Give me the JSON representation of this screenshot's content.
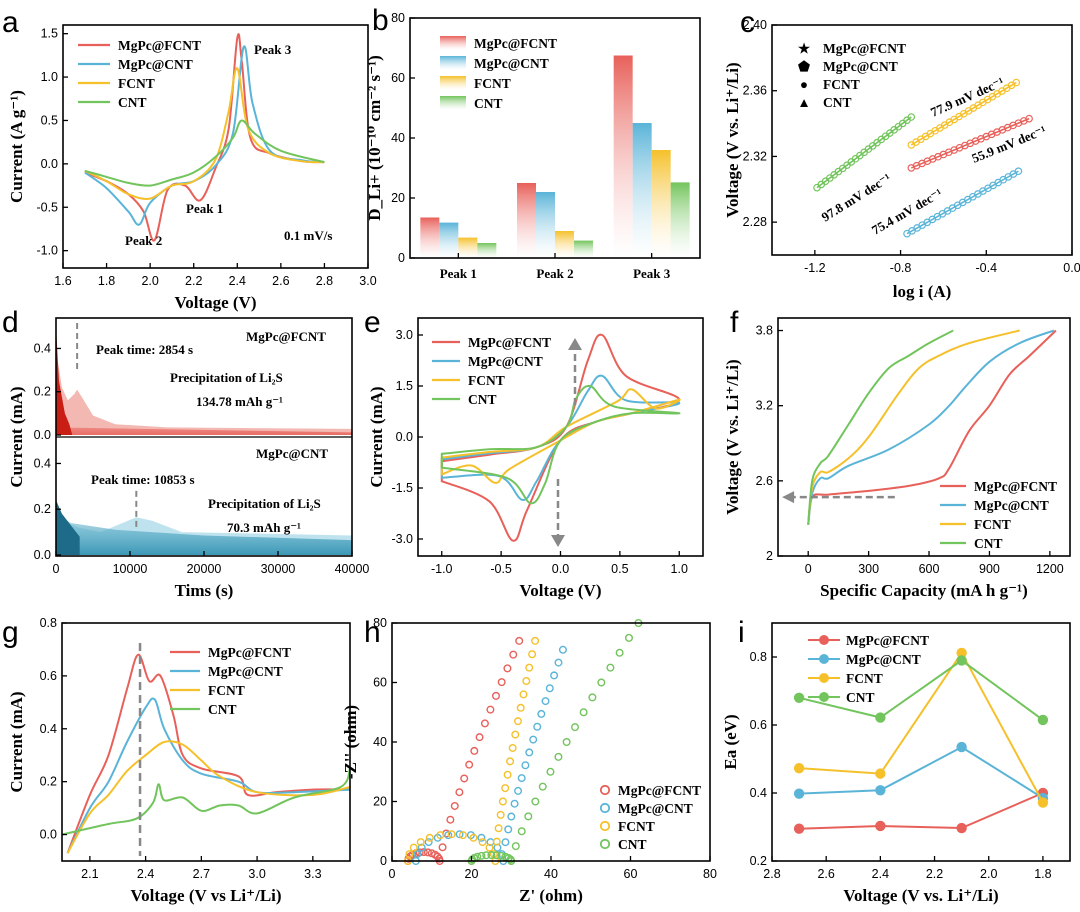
{
  "figure": {
    "colors": {
      "MgPc@FCNT": "#e8605a",
      "MgPc@CNT": "#5ab4d8",
      "FCNT": "#f5c02a",
      "CNT": "#72c45c"
    },
    "legend4": [
      "MgPc@FCNT",
      "MgPc@CNT",
      "FCNT",
      "CNT"
    ]
  },
  "chart_data": [
    {
      "panel": "a",
      "type": "line",
      "title": "",
      "xlabel": "Voltage (V)",
      "ylabel": "Current (A g⁻¹)",
      "xlim": [
        1.6,
        3.0
      ],
      "ylim": [
        -1.2,
        1.6
      ],
      "xticks": [
        "1.6",
        "1.8",
        "2.0",
        "2.2",
        "2.4",
        "2.6",
        "2.8",
        "3.0"
      ],
      "yticks": [
        "-1.0",
        "-0.5",
        "0.0",
        "0.5",
        "1.0",
        "1.5"
      ],
      "annotations": [
        "Peak 3",
        "Peak 1",
        "Peak 2",
        "0.1 mV/s"
      ],
      "series": [
        {
          "name": "MgPc@FCNT",
          "x": [
            1.7,
            1.8,
            1.9,
            1.97,
            2.02,
            2.08,
            2.16,
            2.23,
            2.3,
            2.36,
            2.4,
            2.42,
            2.46,
            2.55,
            2.7,
            2.8
          ],
          "y": [
            -0.1,
            -0.2,
            -0.35,
            -0.55,
            -0.88,
            -0.3,
            -0.25,
            -0.42,
            -0.05,
            0.4,
            1.45,
            1.2,
            0.3,
            0.12,
            0.03,
            0.02
          ]
        },
        {
          "name": "MgPc@CNT",
          "x": [
            1.7,
            1.8,
            1.9,
            1.95,
            2.0,
            2.1,
            2.2,
            2.3,
            2.38,
            2.43,
            2.47,
            2.55,
            2.7,
            2.8
          ],
          "y": [
            -0.1,
            -0.28,
            -0.55,
            -0.7,
            -0.45,
            -0.25,
            -0.2,
            -0.02,
            0.35,
            1.35,
            0.7,
            0.15,
            0.04,
            0.02
          ]
        },
        {
          "name": "FCNT",
          "x": [
            1.7,
            1.8,
            1.9,
            2.0,
            2.1,
            2.2,
            2.3,
            2.36,
            2.4,
            2.45,
            2.55,
            2.7,
            2.8
          ],
          "y": [
            -0.08,
            -0.2,
            -0.35,
            -0.4,
            -0.25,
            -0.2,
            0.05,
            0.6,
            1.1,
            0.4,
            0.12,
            0.03,
            0.02
          ]
        },
        {
          "name": "CNT",
          "x": [
            1.7,
            1.8,
            1.9,
            2.0,
            2.1,
            2.2,
            2.3,
            2.38,
            2.42,
            2.48,
            2.6,
            2.8
          ],
          "y": [
            -0.08,
            -0.15,
            -0.22,
            -0.25,
            -0.18,
            -0.1,
            0.08,
            0.3,
            0.5,
            0.35,
            0.15,
            0.02
          ]
        }
      ]
    },
    {
      "panel": "b",
      "type": "bar",
      "xlabel": "",
      "ylabel": "D_Li+ (10⁻¹⁰ cm⁻² s⁻¹)",
      "ylim": [
        0,
        80
      ],
      "yticks": [
        "0",
        "20",
        "40",
        "60",
        "80"
      ],
      "categories": [
        "Peak 1",
        "Peak 2",
        "Peak 3"
      ],
      "series": [
        {
          "name": "MgPc@FCNT",
          "values": [
            13.5,
            25,
            67.5
          ]
        },
        {
          "name": "MgPc@CNT",
          "values": [
            11.8,
            22,
            45
          ]
        },
        {
          "name": "FCNT",
          "values": [
            6.8,
            9,
            36
          ]
        },
        {
          "name": "CNT",
          "values": [
            5,
            5.8,
            25.2
          ]
        }
      ]
    },
    {
      "panel": "c",
      "type": "scatter",
      "xlabel": "log i (A)",
      "ylabel": "Voltage (V vs. Li⁺/Li)",
      "xlim": [
        -1.4,
        0.0
      ],
      "ylim": [
        2.26,
        2.4
      ],
      "xticks": [
        "-1.2",
        "-0.8",
        "-0.4",
        "0.0"
      ],
      "yticks": [
        "2.28",
        "2.32",
        "2.36",
        "2.40"
      ],
      "annotations": [
        "97.8 mV dec⁻¹",
        "77.9 mV dec⁻¹",
        "55.9 mV dec⁻¹",
        "75.4 mV dec⁻¹"
      ],
      "series": [
        {
          "name": "MgPc@FCNT",
          "x": [
            -0.75,
            -0.2
          ],
          "y": [
            2.313,
            2.343
          ]
        },
        {
          "name": "MgPc@CNT",
          "x": [
            -0.77,
            -0.25
          ],
          "y": [
            2.273,
            2.311
          ]
        },
        {
          "name": "FCNT",
          "x": [
            -0.75,
            -0.26
          ],
          "y": [
            2.327,
            2.365
          ]
        },
        {
          "name": "CNT",
          "x": [
            -1.19,
            -0.75
          ],
          "y": [
            2.301,
            2.344
          ]
        }
      ]
    },
    {
      "panel": "d",
      "type": "area",
      "xlabel": "Tims (s)",
      "ylabel": "Current (mA)",
      "xlim": [
        0,
        40000
      ],
      "xticks": [
        "0",
        "10000",
        "20000",
        "30000",
        "40000"
      ],
      "yticks_top": [
        "0.0",
        "0.2",
        "0.4"
      ],
      "yticks_bottom": [
        "0.0",
        "0.2",
        "0.4"
      ],
      "top": {
        "name": "MgPc@FCNT",
        "peak_text": "Peak time: 2854 s",
        "precip_label": "Precipitation of Li₂S",
        "capacity": "134.78 mAh g⁻¹",
        "peak_time": 2854
      },
      "bottom": {
        "name": "MgPc@CNT",
        "peak_text": "Peak time: 10853 s",
        "precip_label": "Precipitation of Li₂S",
        "capacity": "70.3 mAh g⁻¹",
        "peak_time": 10853
      }
    },
    {
      "panel": "e",
      "type": "line",
      "xlabel": "Voltage (V)",
      "ylabel": "Current (mA)",
      "xlim": [
        -1.2,
        1.2
      ],
      "ylim": [
        -3.5,
        3.5
      ],
      "xticks": [
        "-1.0",
        "-0.5",
        "0.0",
        "0.5",
        "1.0"
      ],
      "yticks": [
        "-3.0",
        "-1.5",
        "0.0",
        "1.5",
        "3.0"
      ],
      "series": [
        {
          "name": "MgPc@FCNT",
          "peak_pos": [
            0.35,
            3.0
          ],
          "peak_neg": [
            -0.4,
            -3.05
          ],
          "end_r": 1.1,
          "end_l": -1.3
        },
        {
          "name": "MgPc@CNT",
          "peak_pos": [
            0.35,
            1.8
          ],
          "peak_neg": [
            -0.32,
            -1.85
          ],
          "end_r": 1.0,
          "end_l": -1.2
        },
        {
          "name": "FCNT",
          "peak_pos": [
            0.6,
            1.4
          ],
          "peak_neg": [
            -0.55,
            -1.35
          ],
          "end_r": 1.1,
          "end_l": -1.1
        },
        {
          "name": "CNT",
          "peak_pos": [
            0.25,
            1.5
          ],
          "peak_neg": [
            -0.25,
            -1.95
          ],
          "end_r": 0.7,
          "end_l": -0.9
        }
      ]
    },
    {
      "panel": "f",
      "type": "line",
      "xlabel": "Specific Capacity (mA h g⁻¹)",
      "ylabel": "Voltage (V vs. Li⁺/Li)",
      "xlim": [
        -150,
        1300
      ],
      "ylim": [
        2.0,
        3.9
      ],
      "xticks": [
        "0",
        "300",
        "600",
        "900",
        "1200"
      ],
      "yticks": [
        "2",
        "2.6",
        "3.2",
        "3.8"
      ],
      "series": [
        {
          "name": "MgPc@FCNT",
          "x": [
            0,
            20,
            100,
            300,
            500,
            650,
            700,
            800,
            900,
            1000,
            1100,
            1230
          ],
          "y": [
            2.25,
            2.47,
            2.49,
            2.52,
            2.56,
            2.62,
            2.7,
            3.0,
            3.2,
            3.45,
            3.6,
            3.8
          ]
        },
        {
          "name": "MgPc@CNT",
          "x": [
            0,
            20,
            60,
            100,
            200,
            400,
            600,
            700,
            780,
            900,
            1050,
            1220
          ],
          "y": [
            2.25,
            2.5,
            2.62,
            2.62,
            2.72,
            2.85,
            3.05,
            3.2,
            3.35,
            3.55,
            3.7,
            3.8
          ]
        },
        {
          "name": "FCNT",
          "x": [
            0,
            20,
            60,
            100,
            200,
            300,
            450,
            550,
            650,
            800,
            1050
          ],
          "y": [
            2.25,
            2.55,
            2.67,
            2.67,
            2.78,
            2.95,
            3.3,
            3.5,
            3.6,
            3.7,
            3.8
          ]
        },
        {
          "name": "CNT",
          "x": [
            0,
            20,
            60,
            100,
            200,
            300,
            400,
            500,
            600,
            720
          ],
          "y": [
            2.25,
            2.6,
            2.74,
            2.8,
            3.05,
            3.3,
            3.5,
            3.6,
            3.7,
            3.8
          ]
        }
      ]
    },
    {
      "panel": "g",
      "type": "line",
      "xlabel": "Voltage (V vs Li⁺/Li)",
      "ylabel": "Current (mA)",
      "xlim": [
        1.95,
        3.5
      ],
      "ylim": [
        -0.1,
        0.8
      ],
      "xticks": [
        "2.1",
        "2.4",
        "2.7",
        "3.0",
        "3.3"
      ],
      "yticks": [
        "0.0",
        "0.2",
        "0.4",
        "0.6",
        "0.8"
      ],
      "series": [
        {
          "name": "MgPc@FCNT",
          "x": [
            1.98,
            2.1,
            2.2,
            2.3,
            2.36,
            2.42,
            2.48,
            2.55,
            2.6,
            2.7,
            2.9,
            2.95,
            3.1,
            3.3,
            3.5
          ],
          "y": [
            -0.07,
            0.15,
            0.3,
            0.55,
            0.68,
            0.58,
            0.6,
            0.45,
            0.3,
            0.25,
            0.22,
            0.15,
            0.16,
            0.17,
            0.17
          ]
        },
        {
          "name": "MgPc@CNT",
          "x": [
            1.98,
            2.1,
            2.2,
            2.3,
            2.4,
            2.45,
            2.5,
            2.6,
            2.7,
            2.9,
            3.0,
            3.2,
            3.5
          ],
          "y": [
            -0.07,
            0.1,
            0.2,
            0.35,
            0.48,
            0.51,
            0.4,
            0.28,
            0.23,
            0.2,
            0.16,
            0.16,
            0.17
          ]
        },
        {
          "name": "FCNT",
          "x": [
            1.98,
            2.1,
            2.2,
            2.3,
            2.4,
            2.5,
            2.6,
            2.7,
            2.8,
            3.0,
            3.3,
            3.5
          ],
          "y": [
            -0.07,
            0.08,
            0.15,
            0.24,
            0.3,
            0.35,
            0.34,
            0.28,
            0.22,
            0.16,
            0.15,
            0.18
          ]
        },
        {
          "name": "CNT",
          "x": [
            1.95,
            2.2,
            2.35,
            2.44,
            2.47,
            2.5,
            2.6,
            2.7,
            2.8,
            2.9,
            3.0,
            3.2,
            3.45,
            3.5
          ],
          "y": [
            0.0,
            0.04,
            0.06,
            0.12,
            0.19,
            0.13,
            0.14,
            0.09,
            0.11,
            0.11,
            0.08,
            0.14,
            0.18,
            0.25
          ]
        }
      ]
    },
    {
      "panel": "h",
      "type": "scatter",
      "xlabel": "Z' (ohm)",
      "ylabel": "-Z'' (ohm)",
      "xlim": [
        0,
        80
      ],
      "ylim": [
        0,
        80
      ],
      "xticks": [
        "0",
        "20",
        "40",
        "60",
        "80"
      ],
      "yticks": [
        "0",
        "20",
        "40",
        "60",
        "80"
      ],
      "series": [
        {
          "name": "MgPc@FCNT",
          "arc": [
            4,
            12,
            3
          ],
          "tail": [
            [
              12,
              0
            ],
            [
              32,
              74
            ]
          ]
        },
        {
          "name": "MgPc@CNT",
          "arc": [
            6,
            28,
            9
          ],
          "tail": [
            [
              28,
              2
            ],
            [
              43,
              71
            ]
          ]
        },
        {
          "name": "FCNT",
          "arc": [
            4,
            26,
            9
          ],
          "tail": [
            [
              26,
              2
            ],
            [
              36,
              74
            ]
          ]
        },
        {
          "name": "CNT",
          "arc": [
            20,
            30,
            2
          ],
          "tail": [
            [
              30,
              0
            ],
            [
              62,
              80
            ]
          ]
        }
      ]
    },
    {
      "panel": "i",
      "type": "line",
      "xlabel": "Voltage (V vs. Li⁺/Li)",
      "ylabel": "Ea (eV)",
      "xlim": [
        2.8,
        1.7
      ],
      "ylim": [
        0.2,
        0.9
      ],
      "xticks": [
        "2.8",
        "2.6",
        "2.4",
        "2.2",
        "2.0",
        "1.8"
      ],
      "yticks": [
        "0.2",
        "0.4",
        "0.6",
        "0.8"
      ],
      "x": [
        2.7,
        2.4,
        2.1,
        1.8
      ],
      "series": [
        {
          "name": "MgPc@FCNT",
          "values": [
            0.295,
            0.303,
            0.297,
            0.4
          ]
        },
        {
          "name": "MgPc@CNT",
          "values": [
            0.398,
            0.408,
            0.535,
            0.385
          ]
        },
        {
          "name": "FCNT",
          "values": [
            0.473,
            0.457,
            0.812,
            0.372
          ]
        },
        {
          "name": "CNT",
          "values": [
            0.68,
            0.622,
            0.79,
            0.615
          ]
        }
      ]
    }
  ]
}
